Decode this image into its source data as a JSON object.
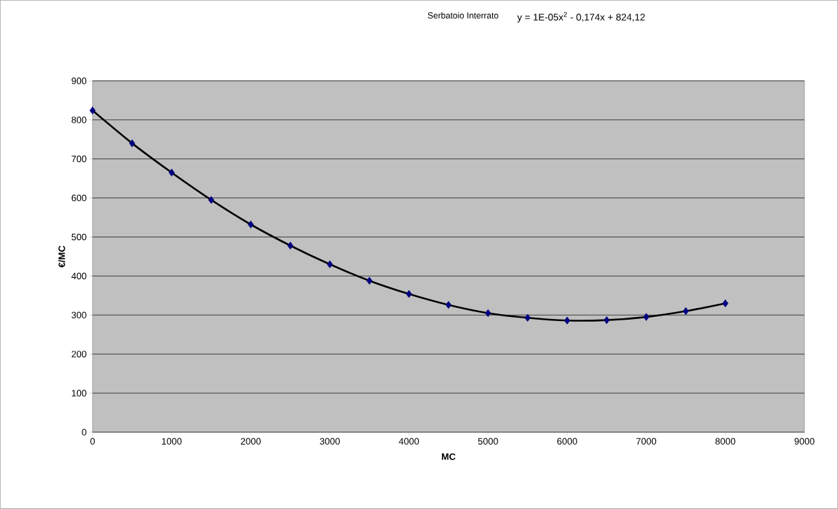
{
  "chart_data": {
    "type": "scatter",
    "title": "Serbatoio Interrato",
    "xlabel": "MC",
    "ylabel": "€/MC",
    "annotations": [
      "y = 1E-05x$^{2}$ - 0,174x + 824,12"
    ],
    "xlim": [
      0,
      9000
    ],
    "ylim": [
      0,
      900
    ],
    "xticks": [
      0,
      1000,
      2000,
      3000,
      4000,
      5000,
      6000,
      7000,
      8000,
      9000
    ],
    "yticks": [
      0,
      100,
      200,
      300,
      400,
      500,
      600,
      700,
      800,
      900
    ],
    "grid": "y",
    "series": [
      {
        "color": "#000080",
        "marker": "diamond",
        "x": [
          0,
          500,
          1000,
          1500,
          2000,
          2500,
          3000,
          3500,
          4000,
          4500,
          5000,
          5500,
          6000,
          6500,
          7000,
          7500,
          8000
        ],
        "values": [
          824,
          740,
          665,
          595,
          532,
          478,
          430,
          388,
          354,
          326,
          305,
          293,
          286,
          287,
          295,
          310,
          330
        ]
      },
      {
        "type": "line",
        "color": "#000000",
        "marker": "none",
        "line_style": "solid",
        "x": [
          0,
          500,
          1000,
          1500,
          2000,
          2500,
          3000,
          3500,
          4000,
          4500,
          5000,
          5500,
          6000,
          6500,
          7000,
          7500,
          8000
        ],
        "values": [
          824,
          740,
          665,
          595,
          532,
          478,
          430,
          388,
          354,
          326,
          305,
          293,
          286,
          287,
          295,
          310,
          330
        ]
      }
    ]
  }
}
